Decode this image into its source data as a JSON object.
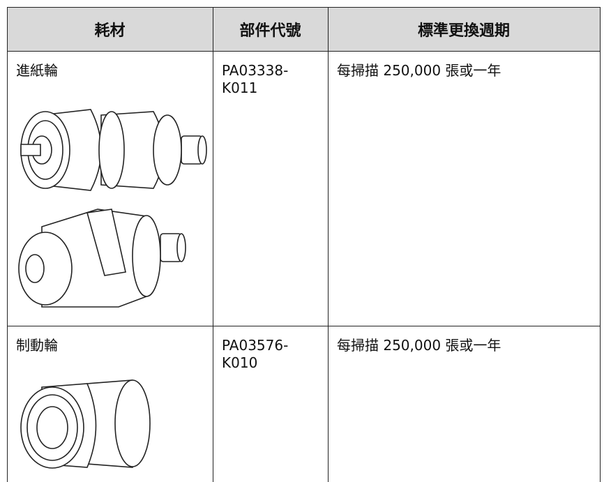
{
  "table": {
    "header": [
      "耗材",
      "部件代號",
      "標準更換週期"
    ],
    "rows": [
      [
        [
          "進紙輪"
        ],
        [
          "PA03338-",
          "K011"
        ],
        [
          "每掃描 250,000 張或一年"
        ]
      ],
      [
        [
          "制動輪"
        ],
        [
          "PA03576-",
          "K010"
        ],
        [
          "每掃描 250,000 張或一年"
        ]
      ]
    ]
  }
}
